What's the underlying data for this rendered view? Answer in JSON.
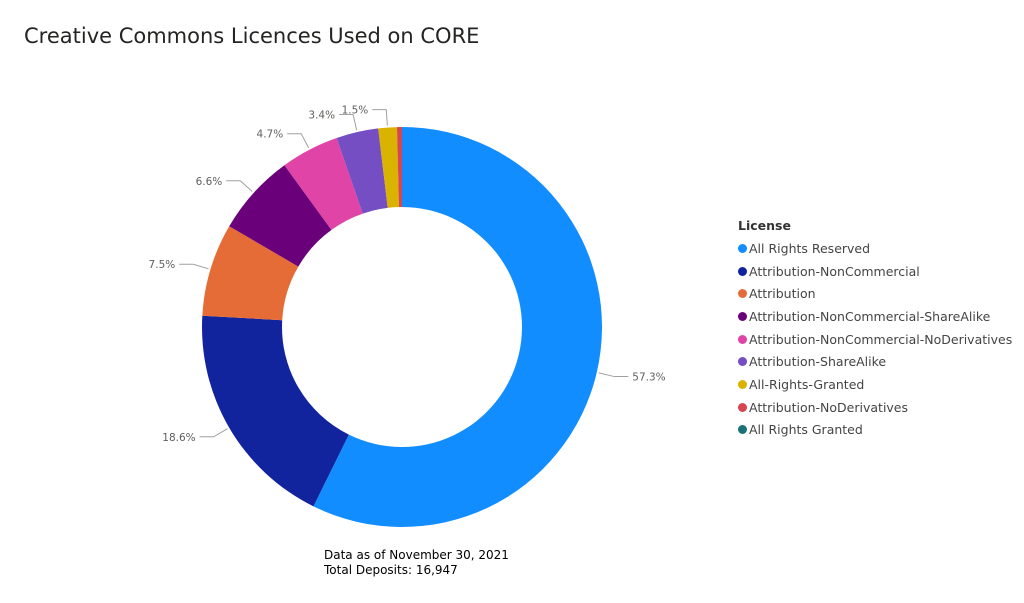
{
  "chart_data": {
    "type": "pie",
    "donut": true,
    "title": "Creative Commons Licences Used on CORE",
    "legend_title": "License",
    "legend_position": "right",
    "slices": [
      {
        "label": "All Rights Reserved",
        "value": 57.3,
        "data_label": "57.3%",
        "color": "#118DFF"
      },
      {
        "label": "Attribution-NonCommercial",
        "value": 18.6,
        "data_label": "18.6%",
        "color": "#12239E"
      },
      {
        "label": "Attribution",
        "value": 7.5,
        "data_label": "7.5%",
        "color": "#E66C37"
      },
      {
        "label": "Attribution-NonCommercial-ShareAlike",
        "value": 6.6,
        "data_label": "6.6%",
        "color": "#6B007B"
      },
      {
        "label": "Attribution-NonCommercial-NoDerivatives",
        "value": 4.7,
        "data_label": "4.7%",
        "color": "#E044A7"
      },
      {
        "label": "Attribution-ShareAlike",
        "value": 3.4,
        "data_label": "3.4%",
        "color": "#744EC2"
      },
      {
        "label": "All-Rights-Granted",
        "value": 1.5,
        "data_label": "1.5%",
        "color": "#D9B300"
      },
      {
        "label": "Attribution-NoDerivatives",
        "value": 0.4,
        "data_label": "",
        "color": "#D64550"
      },
      {
        "label": "All Rights Granted",
        "value": 0.0,
        "data_label": "",
        "color": "#197278"
      }
    ]
  },
  "footer": {
    "line1": "Data as of November 30, 2021",
    "line2": "Total Deposits: 16,947"
  }
}
